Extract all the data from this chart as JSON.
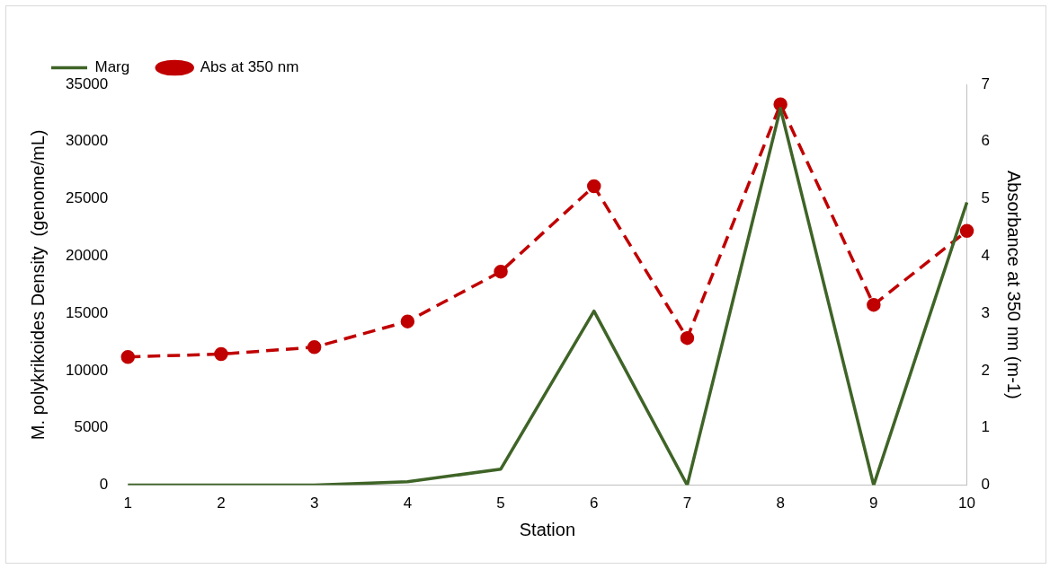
{
  "chart_data": {
    "type": "line",
    "xlabel": "Station",
    "ylabel": "M. polykrikoides Density  (genome/mL)",
    "y2label": "Absorbance at 350 nm (m-1)",
    "categories": [
      "1",
      "2",
      "3",
      "4",
      "5",
      "6",
      "7",
      "8",
      "9",
      "10"
    ],
    "series": [
      {
        "name": "Marg",
        "color": "#3f6427",
        "marker": "none",
        "line_style": "solid",
        "values": [
          0,
          0,
          0,
          300,
          1400,
          15200,
          0,
          32900,
          0,
          24700
        ]
      },
      {
        "name": "Abs at 350 nm",
        "color": "#c00000",
        "marker": "circle",
        "line_style": "dashed",
        "axis": "y2",
        "values": [
          2.24,
          2.29,
          2.41,
          2.86,
          3.73,
          5.22,
          2.57,
          6.65,
          3.15,
          4.44
        ]
      }
    ],
    "ylim": [
      0,
      35000
    ],
    "yticks": [
      0,
      5000,
      10000,
      15000,
      20000,
      25000,
      30000,
      35000
    ],
    "y2lim": [
      0,
      7
    ],
    "y2ticks": [
      0,
      1,
      2,
      3,
      4,
      5,
      6,
      7
    ],
    "grid": false,
    "legend": "top left"
  }
}
